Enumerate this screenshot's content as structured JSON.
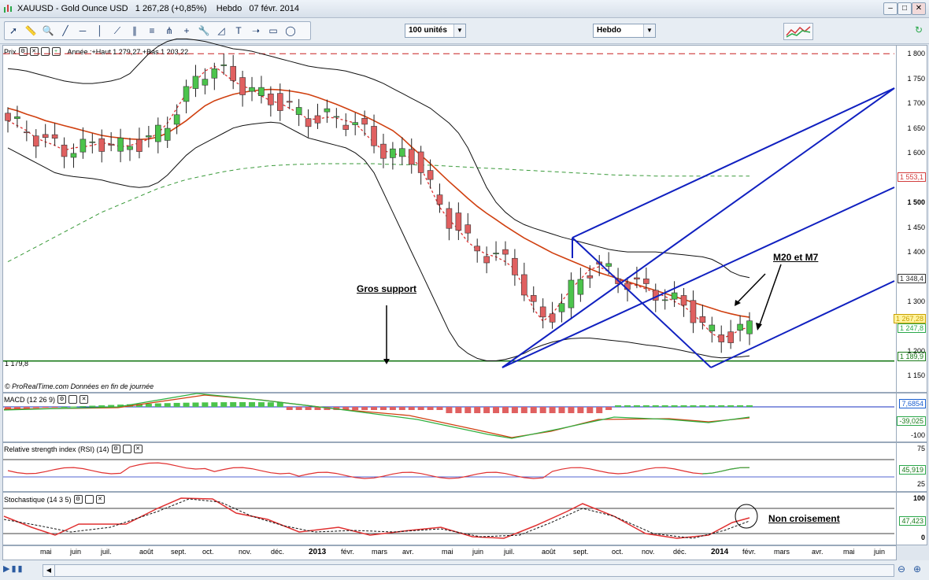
{
  "window": {
    "title": "XAUUSD - Gold Ounce USD   1 267,28 (+0,85%)    Hebdo   07 févr. 2014",
    "minimize": "–",
    "maximize": "□",
    "close": "✕"
  },
  "toolbar": {
    "tools": [
      "cursor-icon",
      "ruler-icon",
      "zoom-icon",
      "line-icon",
      "horizontal-line-icon",
      "vertical-line-icon",
      "trendline-icon",
      "channel-icon",
      "fibonacci-icon",
      "pitchfork-icon",
      "crosshair-icon",
      "tools-icon",
      "gann-icon",
      "text-icon",
      "arrow-icon",
      "rectangle-icon",
      "ellipse-icon"
    ],
    "units_select": "100 unités",
    "period_select": "Hebdo"
  },
  "price_panel": {
    "header_label": "Prix",
    "header_info": "Année :+Haut 1 279,27 +Bas 1 203,22",
    "credit": "© ProRealTime.com  Données en fin de journée",
    "support_label": "1 179,8"
  },
  "annotations": {
    "support": "Gros support",
    "mm": "M20 et M7",
    "stoch": "Non croisement"
  },
  "price_axis": {
    "ticks": [
      "1 800",
      "1 750",
      "1 700",
      "1 650",
      "1 600",
      "1 500",
      "1 450",
      "1 400",
      "1 300",
      "1 200",
      "1 150"
    ],
    "bold_tick": "1 500",
    "boxes": [
      {
        "label": "1 553,1",
        "color": "#d23c3c"
      },
      {
        "label": "1 348,4",
        "color": "#333333"
      },
      {
        "label": "1 267,28",
        "color": "#c8a000"
      },
      {
        "label": "1 247,8",
        "color": "#2aa84a"
      },
      {
        "label": "1 189,9",
        "color": "#1a7a1a"
      }
    ]
  },
  "macd_panel": {
    "header_label": "MACD (12 26 9)",
    "values": [
      "7,6854",
      "-39,025",
      "-100"
    ]
  },
  "rsi_panel": {
    "header_label": "Relative strength index (RSI) (14)",
    "values": [
      "75",
      "45,919",
      "25"
    ]
  },
  "stoch_panel": {
    "header_label": "Stochastique (14 3 5)",
    "values": [
      "100",
      "47,423",
      "0"
    ]
  },
  "x_axis": {
    "labels": [
      "mai",
      "juin",
      "juil.",
      "août",
      "sept.",
      "oct.",
      "nov.",
      "déc.",
      "2013",
      "févr.",
      "mars",
      "avr.",
      "mai",
      "juin",
      "juil.",
      "août",
      "sept.",
      "oct.",
      "nov.",
      "déc.",
      "2014",
      "févr.",
      "mars",
      "avr.",
      "mai",
      "juin"
    ],
    "bold": [
      "2013",
      "2014"
    ]
  },
  "chart_data": {
    "type": "candlestick",
    "title": "XAUUSD - Gold Ounce USD",
    "period": "Hebdo",
    "last_price": 1267.28,
    "change_pct": 0.85,
    "ylim": [
      1130,
      1810
    ],
    "levels": {
      "resistance": 1800,
      "support": 1179.8
    },
    "series": [
      {
        "name": "M20",
        "values": [
          1690,
          1685,
          1678,
          1672,
          1665,
          1660,
          1655,
          1650,
          1645,
          1640,
          1635,
          1632,
          1630,
          1628,
          1627,
          1628,
          1632,
          1640,
          1652,
          1665,
          1680,
          1695,
          1705,
          1712,
          1718,
          1722,
          1725,
          1727,
          1728,
          1727,
          1725,
          1722,
          1718,
          1712,
          1705,
          1698,
          1690,
          1682,
          1674,
          1665,
          1655,
          1645,
          1630,
          1612,
          1595,
          1578,
          1560,
          1542,
          1525,
          1508,
          1492,
          1478,
          1465,
          1452,
          1440,
          1428,
          1418,
          1408,
          1398,
          1390,
          1382,
          1374,
          1366,
          1358,
          1352,
          1346,
          1340,
          1334,
          1328,
          1322,
          1316,
          1310,
          1304,
          1298,
          1292,
          1286,
          1280,
          1275,
          1271,
          1268
        ]
      },
      {
        "name": "M7",
        "values": [
          1665,
          1655,
          1645,
          1630,
          1622,
          1615,
          1605,
          1610,
          1612,
          1615,
          1620,
          1618,
          1612,
          1615,
          1620,
          1628,
          1640,
          1660,
          1690,
          1720,
          1745,
          1765,
          1775,
          1760,
          1745,
          1735,
          1728,
          1715,
          1705,
          1700,
          1690,
          1680,
          1668,
          1668,
          1672,
          1670,
          1665,
          1660,
          1640,
          1620,
          1605,
          1598,
          1595,
          1590,
          1570,
          1530,
          1490,
          1465,
          1445,
          1420,
          1405,
          1395,
          1390,
          1380,
          1365,
          1325,
          1285,
          1260,
          1275,
          1300,
          1325,
          1345,
          1365,
          1370,
          1360,
          1345,
          1338,
          1332,
          1325,
          1318,
          1310,
          1300,
          1290,
          1275,
          1255,
          1235,
          1225,
          1232,
          1243,
          1248
        ]
      },
      {
        "name": "M300",
        "values": [
          1380,
          1390,
          1400,
          1410,
          1420,
          1430,
          1440,
          1450,
          1460,
          1470,
          1480,
          1488,
          1496,
          1504,
          1512,
          1520,
          1528,
          1534,
          1540,
          1546,
          1550,
          1554,
          1558,
          1562,
          1565,
          1568,
          1570,
          1572,
          1574,
          1575,
          1576,
          1577,
          1577,
          1578,
          1578,
          1578,
          1578,
          1578,
          1578,
          1578,
          1577,
          1577,
          1576,
          1576,
          1575,
          1575,
          1574,
          1573,
          1572,
          1571,
          1570,
          1569,
          1568,
          1567,
          1566,
          1565,
          1564,
          1563,
          1562,
          1561,
          1560,
          1559,
          1558,
          1557,
          1556,
          1555,
          1555,
          1554,
          1554,
          1553,
          1553,
          1553,
          1553,
          1553,
          1553,
          1553,
          1553,
          1553,
          1553,
          1553
        ]
      },
      {
        "name": "Bollinger haute",
        "values": [
          1770,
          1768,
          1765,
          1760,
          1755,
          1750,
          1745,
          1742,
          1740,
          1740,
          1742,
          1745,
          1750,
          1760,
          1780,
          1800,
          1815,
          1825,
          1830,
          1830,
          1828,
          1825,
          1820,
          1815,
          1810,
          1808,
          1805,
          1800,
          1795,
          1790,
          1785,
          1780,
          1775,
          1772,
          1770,
          1768,
          1765,
          1760,
          1755,
          1748,
          1740,
          1730,
          1720,
          1710,
          1700,
          1690,
          1675,
          1660,
          1640,
          1610,
          1570,
          1530,
          1500,
          1480,
          1465,
          1455,
          1448,
          1442,
          1436,
          1430,
          1425,
          1420,
          1415,
          1410,
          1405,
          1402,
          1400,
          1400,
          1400,
          1400,
          1398,
          1396,
          1394,
          1392,
          1390,
          1385,
          1375,
          1360,
          1352,
          1348
        ]
      },
      {
        "name": "Bollinger basse",
        "values": [
          1610,
          1600,
          1590,
          1580,
          1570,
          1560,
          1555,
          1552,
          1550,
          1548,
          1545,
          1540,
          1536,
          1532,
          1530,
          1532,
          1540,
          1555,
          1575,
          1595,
          1610,
          1620,
          1630,
          1640,
          1650,
          1655,
          1658,
          1660,
          1662,
          1660,
          1650,
          1640,
          1630,
          1625,
          1620,
          1615,
          1610,
          1600,
          1585,
          1560,
          1520,
          1480,
          1440,
          1400,
          1360,
          1320,
          1280,
          1240,
          1210,
          1195,
          1185,
          1180,
          1180,
          1183,
          1188,
          1195,
          1205,
          1212,
          1218,
          1222,
          1225,
          1226,
          1226,
          1224,
          1222,
          1220,
          1218,
          1215,
          1212,
          1210,
          1207,
          1204,
          1200,
          1196,
          1192,
          1188,
          1186,
          1187,
          1188,
          1190
        ]
      }
    ],
    "indicators": {
      "MACD": {
        "params": "12 26 9",
        "value": 7.6854,
        "signal": -39.025
      },
      "RSI": {
        "params": "14",
        "value": 45.919,
        "levels": [
          75,
          25
        ]
      },
      "Stochastique": {
        "params": "14 3 5",
        "value": 47.423,
        "levels": [
          80,
          20
        ]
      }
    }
  }
}
